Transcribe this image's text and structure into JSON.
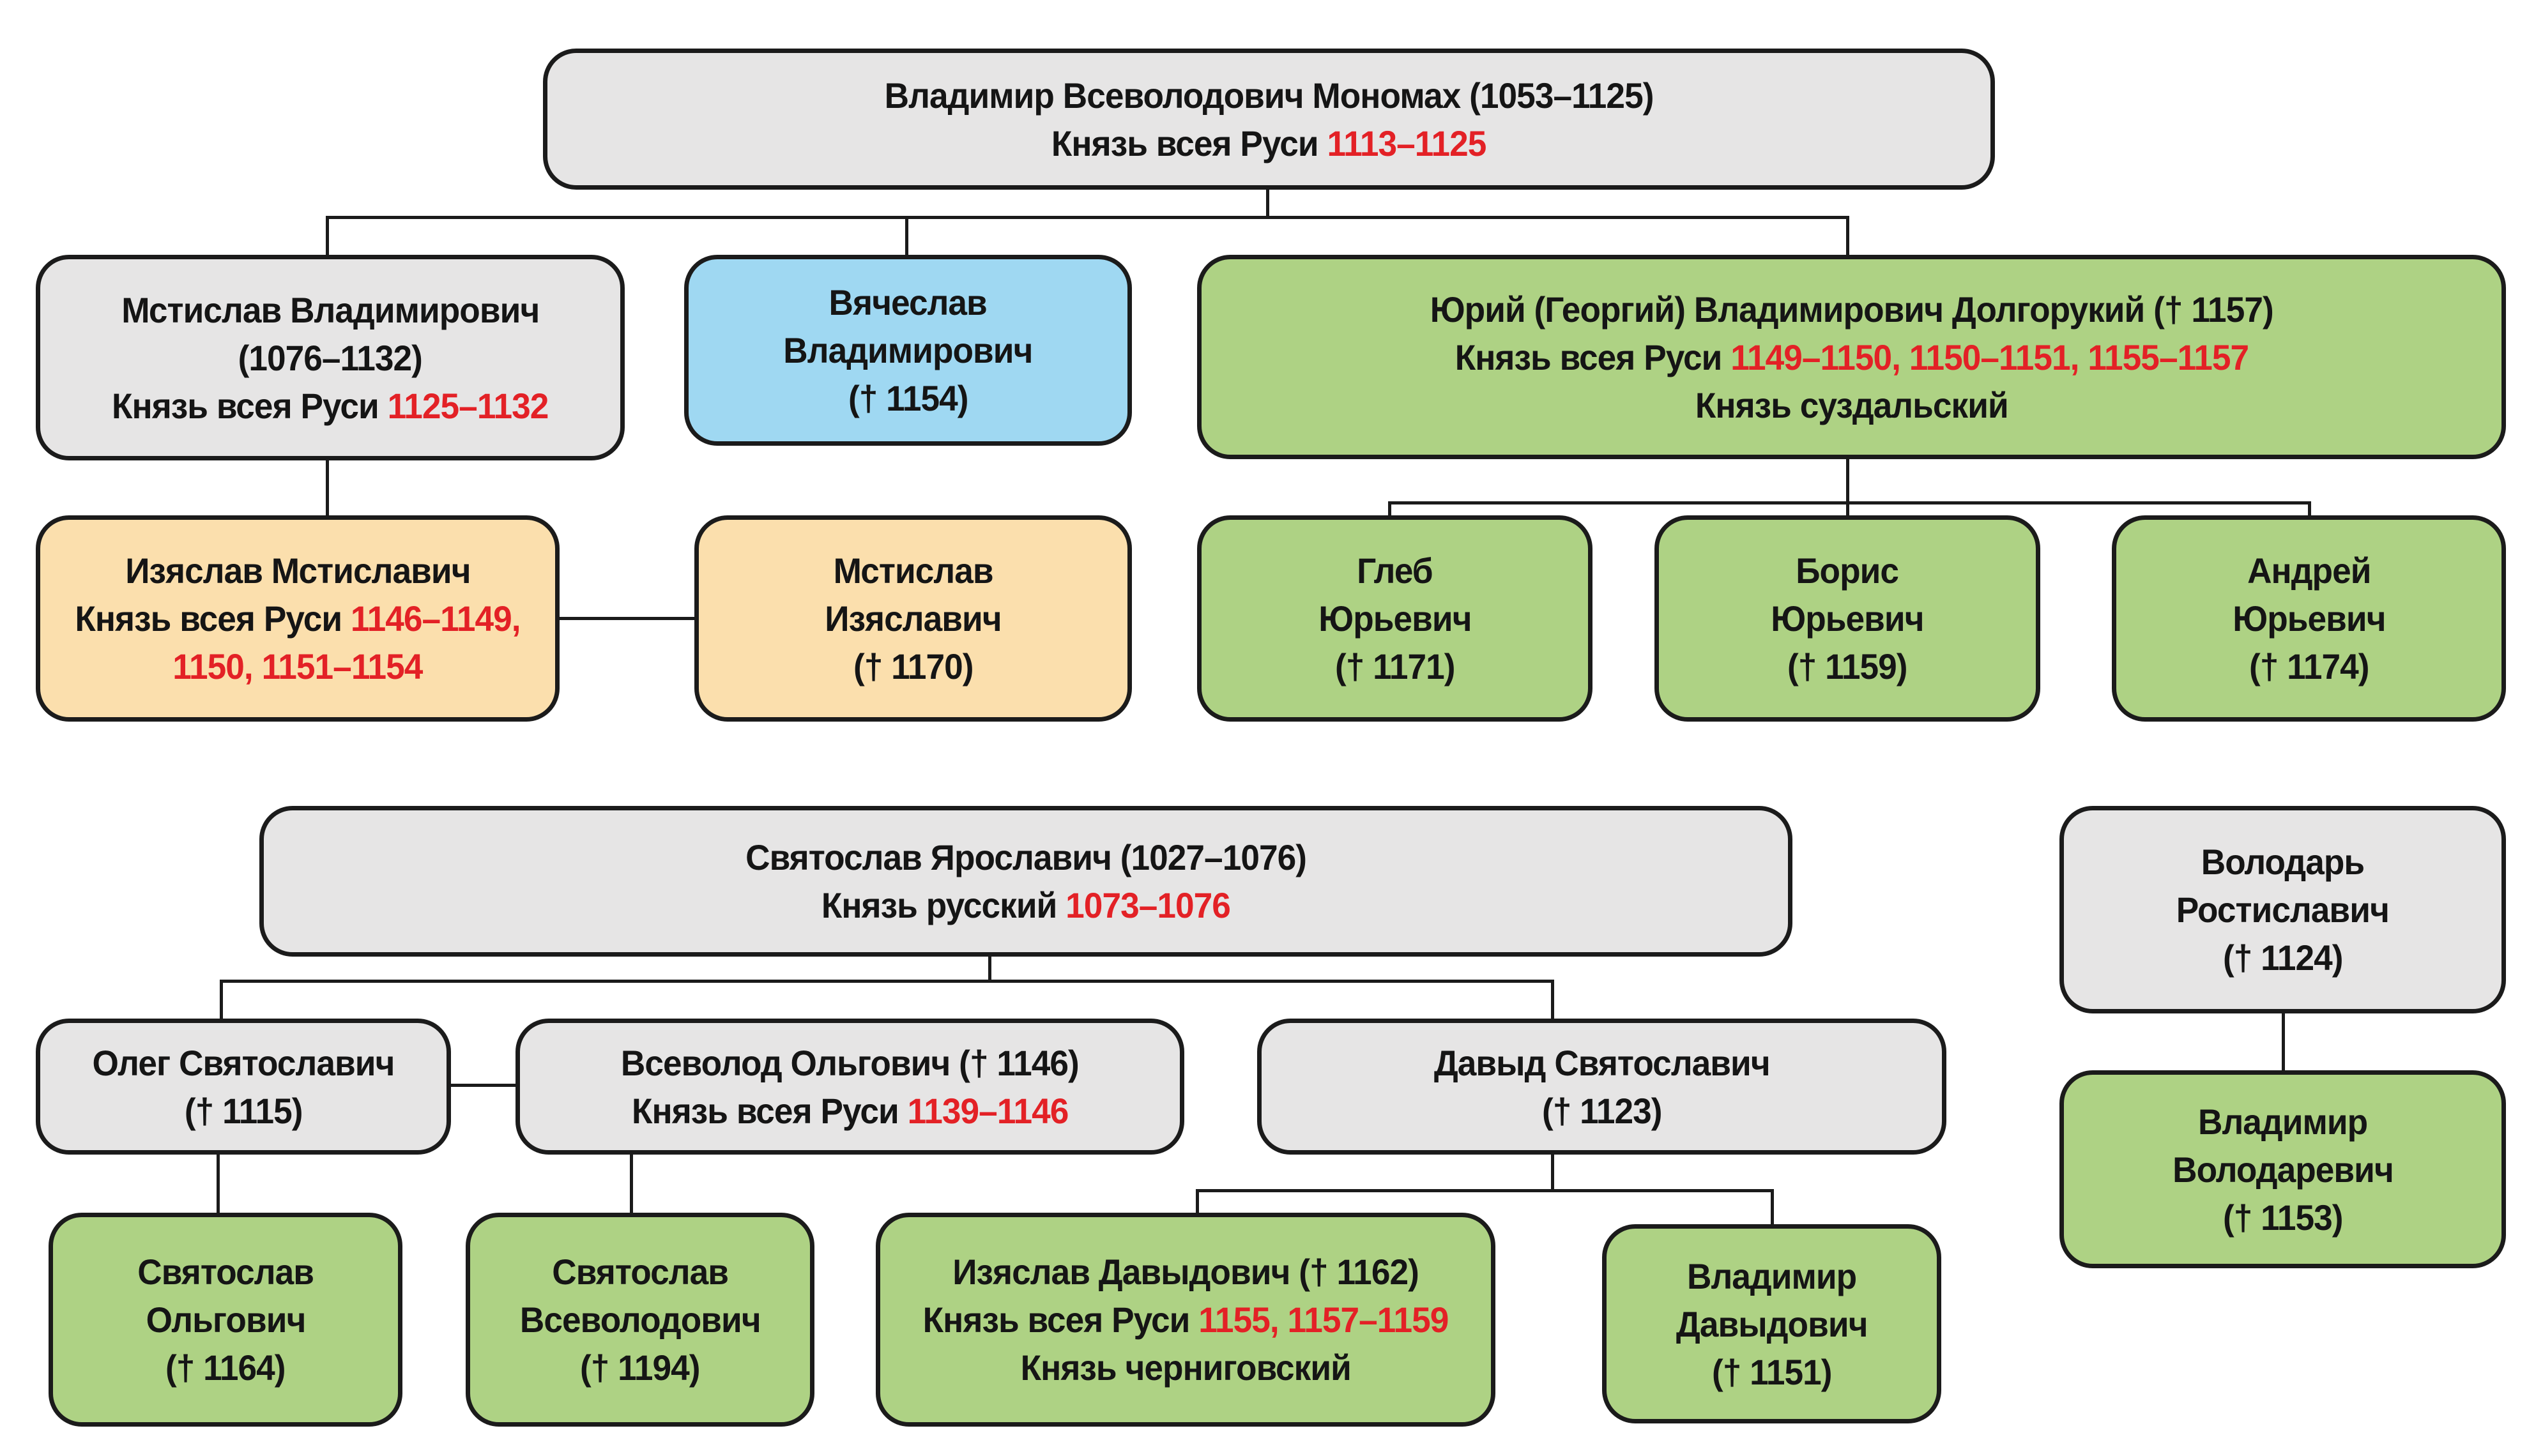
{
  "palette": {
    "box_gray": "#e6e5e5",
    "box_blue": "#9fd8f2",
    "box_green": "#aed284",
    "box_tan": "#fbdfad",
    "reign_red": "#e32126",
    "line_black": "#1b1b1b"
  },
  "boxes": {
    "monomakh": {
      "color": "gray",
      "lines": [
        [
          {
            "t": "Владимир Всеволодович Мономах (1053–1125)"
          }
        ],
        [
          {
            "t": "Князь всея Руси "
          },
          {
            "t": "1113–1125",
            "red": true
          }
        ]
      ]
    },
    "mstislav_vladimirovich": {
      "color": "gray",
      "lines": [
        [
          {
            "t": "Мстислав Владимирович"
          }
        ],
        [
          {
            "t": "(1076–1132)"
          }
        ],
        [
          {
            "t": "Князь всея Руси "
          },
          {
            "t": "1125–1132",
            "red": true
          }
        ]
      ]
    },
    "vyacheslav_vladimirovich": {
      "color": "blue",
      "lines": [
        [
          {
            "t": "Вячеслав"
          }
        ],
        [
          {
            "t": "Владимирович"
          }
        ],
        [
          {
            "t": "(† 1154)"
          }
        ]
      ]
    },
    "yuri_dolgoruky": {
      "color": "green",
      "lines": [
        [
          {
            "t": "Юрий (Георгий) Владимирович Долгорукий († 1157)"
          }
        ],
        [
          {
            "t": "Князь всея Руси "
          },
          {
            "t": "1149–1150, 1150–1151, 1155–1157",
            "red": true
          }
        ],
        [
          {
            "t": "Князь суздальский"
          }
        ]
      ]
    },
    "izyaslav_mstislavich": {
      "color": "tan",
      "lines": [
        [
          {
            "t": "Изяслав Мстиславич"
          }
        ],
        [
          {
            "t": "Князь всея Руси "
          },
          {
            "t": "1146–1149,",
            "red": true
          }
        ],
        [
          {
            "t": "1150, 1151–1154",
            "red": true
          }
        ]
      ]
    },
    "mstislav_izyaslavich": {
      "color": "tan",
      "lines": [
        [
          {
            "t": "Мстислав"
          }
        ],
        [
          {
            "t": "Изяславич"
          }
        ],
        [
          {
            "t": "(† 1170)"
          }
        ]
      ]
    },
    "gleb_yuryevich": {
      "color": "green",
      "lines": [
        [
          {
            "t": "Глеб"
          }
        ],
        [
          {
            "t": "Юрьевич"
          }
        ],
        [
          {
            "t": "(† 1171)"
          }
        ]
      ]
    },
    "boris_yuryevich": {
      "color": "green",
      "lines": [
        [
          {
            "t": "Борис"
          }
        ],
        [
          {
            "t": "Юрьевич"
          }
        ],
        [
          {
            "t": "(† 1159)"
          }
        ]
      ]
    },
    "andrey_yuryevich": {
      "color": "green",
      "lines": [
        [
          {
            "t": "Андрей"
          }
        ],
        [
          {
            "t": "Юрьевич"
          }
        ],
        [
          {
            "t": "(† 1174)"
          }
        ]
      ]
    },
    "svyatoslav_yaroslavich": {
      "color": "gray",
      "lines": [
        [
          {
            "t": "Святослав Ярославич (1027–1076)"
          }
        ],
        [
          {
            "t": "Князь русский "
          },
          {
            "t": "1073–1076",
            "red": true
          }
        ]
      ]
    },
    "volodar_rostislavich": {
      "color": "gray",
      "lines": [
        [
          {
            "t": "Володарь"
          }
        ],
        [
          {
            "t": "Ростиславич"
          }
        ],
        [
          {
            "t": "(† 1124)"
          }
        ]
      ]
    },
    "oleg_svyatoslavich": {
      "color": "gray",
      "lines": [
        [
          {
            "t": "Олег Святославич"
          }
        ],
        [
          {
            "t": "(† 1115)"
          }
        ]
      ]
    },
    "vsevolod_olgovich": {
      "color": "gray",
      "lines": [
        [
          {
            "t": "Всеволод Ольгович († 1146)"
          }
        ],
        [
          {
            "t": "Князь всея Руси "
          },
          {
            "t": "1139–1146",
            "red": true
          }
        ]
      ]
    },
    "davyd_svyatoslavich": {
      "color": "gray",
      "lines": [
        [
          {
            "t": "Давыд Святославич"
          }
        ],
        [
          {
            "t": "(† 1123)"
          }
        ]
      ]
    },
    "vladimir_volodarevich": {
      "color": "green",
      "lines": [
        [
          {
            "t": "Владимир"
          }
        ],
        [
          {
            "t": "Володаревич"
          }
        ],
        [
          {
            "t": "(† 1153)"
          }
        ]
      ]
    },
    "svyatoslav_olgovich": {
      "color": "green",
      "lines": [
        [
          {
            "t": "Святослав"
          }
        ],
        [
          {
            "t": "Ольгович"
          }
        ],
        [
          {
            "t": "(† 1164)"
          }
        ]
      ]
    },
    "svyatoslav_vsevolodovich": {
      "color": "green",
      "lines": [
        [
          {
            "t": "Святослав"
          }
        ],
        [
          {
            "t": "Всеволодович"
          }
        ],
        [
          {
            "t": "(† 1194)"
          }
        ]
      ]
    },
    "izyaslav_davydovich": {
      "color": "green",
      "lines": [
        [
          {
            "t": "Изяслав Давыдович († 1162)"
          }
        ],
        [
          {
            "t": "Князь всея Руси "
          },
          {
            "t": "1155, 1157–1159",
            "red": true
          }
        ],
        [
          {
            "t": "Князь черниговский"
          }
        ]
      ]
    },
    "vladimir_davydovich": {
      "color": "green",
      "lines": [
        [
          {
            "t": "Владимир"
          }
        ],
        [
          {
            "t": "Давыдович"
          }
        ],
        [
          {
            "t": "(† 1151)"
          }
        ]
      ]
    }
  }
}
